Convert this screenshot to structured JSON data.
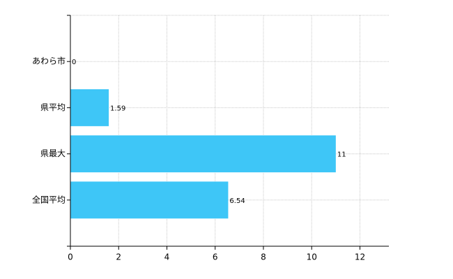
{
  "chart_data": {
    "type": "bar",
    "orientation": "horizontal",
    "categories": [
      "あわら市",
      "県平均",
      "県最大",
      "全国平均"
    ],
    "values": [
      0,
      1.59,
      11,
      6.54
    ],
    "color": "#3ec6f7",
    "xlim": [
      0,
      13.2
    ],
    "xticks": [
      0,
      2,
      4,
      6,
      8,
      10,
      12
    ],
    "grid": true
  }
}
